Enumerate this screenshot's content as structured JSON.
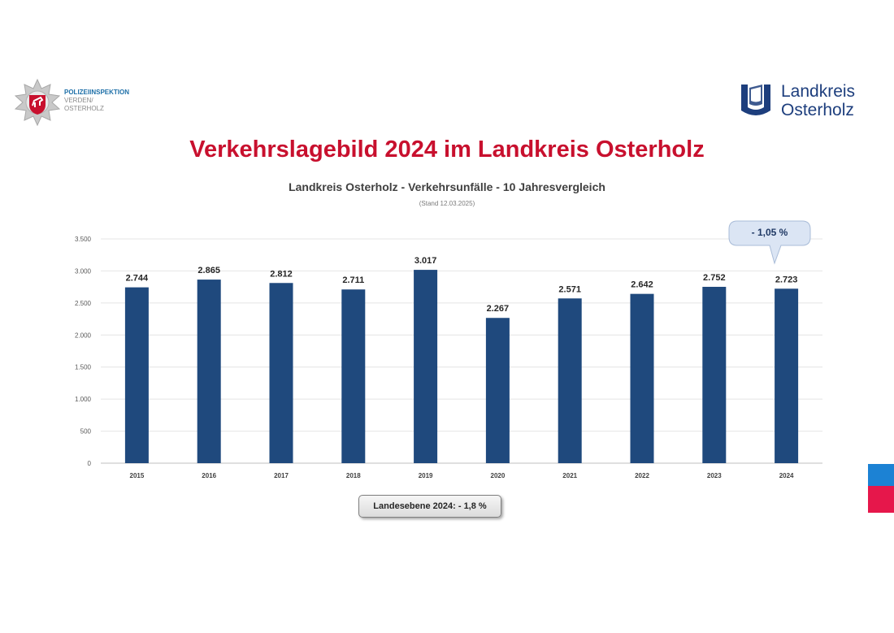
{
  "header": {
    "police": {
      "line1": "POLIZEIINSPEKTION",
      "line2": "VERDEN/",
      "line3": "OSTERHOLZ"
    },
    "landkreis": {
      "line1": "Landkreis",
      "line2": "Osterholz"
    },
    "main_title": "Verkehrslagebild 2024 im Landkreis Osterholz"
  },
  "colors": {
    "bar": "#1f497d",
    "title": "#c8102e",
    "callout": "#dbe5f4"
  },
  "chart_data": {
    "type": "bar",
    "title": "Landkreis Osterholz - Verkehrsunfälle - 10 Jahresvergleich",
    "subtitle": "(Stand 12.03.2025)",
    "categories": [
      "2015",
      "2016",
      "2017",
      "2018",
      "2019",
      "2020",
      "2021",
      "2022",
      "2023",
      "2024"
    ],
    "values": [
      2744,
      2865,
      2812,
      2711,
      3017,
      2267,
      2571,
      2642,
      2752,
      2723
    ],
    "data_labels": [
      "2.744",
      "2.865",
      "2.812",
      "2.711",
      "3.017",
      "2.267",
      "2.571",
      "2.642",
      "2.752",
      "2.723"
    ],
    "y_ticks": [
      0,
      500,
      1000,
      1500,
      2000,
      2500,
      3000,
      3500
    ],
    "y_tick_labels": [
      "0",
      "500",
      "1.000",
      "1.500",
      "2.000",
      "2.500",
      "3.000",
      "3.500"
    ],
    "ylim": [
      0,
      3500
    ],
    "grid": true,
    "annotations": {
      "callout": "- 1,05 %",
      "state_level": "Landesebene 2024: - 1,8 %"
    }
  }
}
